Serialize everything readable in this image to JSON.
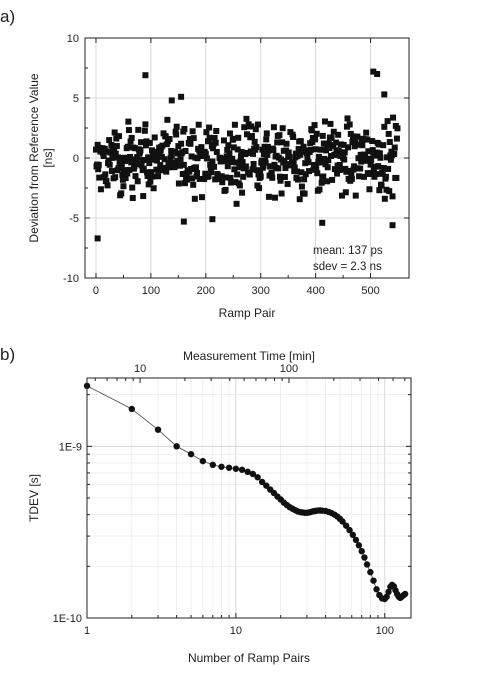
{
  "chart_data": [
    {
      "panel_label": "a)",
      "type": "scatter",
      "xlabel": "Ramp Pair",
      "ylabel_line1": "Deviation from Reference Value",
      "ylabel_line2": "[ns]",
      "xlim": [
        -20,
        570
      ],
      "ylim": [
        -10,
        10
      ],
      "x_ticks": [
        0,
        100,
        200,
        300,
        400,
        500
      ],
      "y_ticks": [
        -10,
        -5,
        0,
        5,
        10
      ],
      "grid": true,
      "annotation_line1": "mean: 137 ps",
      "annotation_line2": "sdev = 2.3 ns",
      "highlight_points": [
        [
          3,
          -6.7
        ],
        [
          90,
          6.9
        ],
        [
          138,
          4.8
        ],
        [
          155,
          5.1
        ],
        [
          160,
          -5.3
        ],
        [
          212,
          -5.1
        ],
        [
          412,
          -5.4
        ],
        [
          505,
          7.2
        ],
        [
          512,
          7.0
        ],
        [
          525,
          5.3
        ],
        [
          540,
          -5.6
        ]
      ],
      "point_count": 550,
      "spread": 2.3,
      "seed": 13
    },
    {
      "panel_label": "b)",
      "type": "line",
      "scale": "log-log",
      "xlabel": "Number of Ramp Pairs",
      "x2label": "Measurement Time [min]",
      "ylabel": "TDEV [s]",
      "xlim": [
        1,
        150
      ],
      "ylim": [
        1e-10,
        2.5e-09
      ],
      "x_ticks": [
        "1",
        "10",
        "100"
      ],
      "x2_ticks": [
        "10",
        "100"
      ],
      "x2_factor": 4.4,
      "y_ticks": [
        "1E-10",
        "1E-9"
      ],
      "grid": true,
      "points": [
        [
          1,
          2.25e-09
        ],
        [
          2,
          1.65e-09
        ],
        [
          3,
          1.25e-09
        ],
        [
          4,
          1e-09
        ],
        [
          5,
          9e-10
        ],
        [
          6,
          8.2e-10
        ],
        [
          7,
          7.8e-10
        ],
        [
          8,
          7.6e-10
        ],
        [
          9,
          7.5e-10
        ],
        [
          10,
          7.4e-10
        ],
        [
          11,
          7.3e-10
        ],
        [
          12,
          7.1e-10
        ],
        [
          13,
          6.9e-10
        ],
        [
          14,
          6.6e-10
        ],
        [
          15,
          6.2e-10
        ],
        [
          16,
          5.9e-10
        ],
        [
          17,
          5.6e-10
        ],
        [
          18,
          5.35e-10
        ],
        [
          19,
          5.1e-10
        ],
        [
          20,
          4.9e-10
        ],
        [
          21,
          4.7e-10
        ],
        [
          22,
          4.55e-10
        ],
        [
          23,
          4.42e-10
        ],
        [
          24,
          4.33e-10
        ],
        [
          25,
          4.25e-10
        ],
        [
          26,
          4.18e-10
        ],
        [
          27,
          4.14e-10
        ],
        [
          28,
          4.12e-10
        ],
        [
          29,
          4.1e-10
        ],
        [
          30,
          4.1e-10
        ],
        [
          31,
          4.12e-10
        ],
        [
          32,
          4.15e-10
        ],
        [
          33,
          4.18e-10
        ],
        [
          34,
          4.2e-10
        ],
        [
          35,
          4.22e-10
        ],
        [
          36,
          4.23e-10
        ],
        [
          37,
          4.23e-10
        ],
        [
          38,
          4.22e-10
        ],
        [
          40,
          4.2e-10
        ],
        [
          42,
          4.15e-10
        ],
        [
          44,
          4.08e-10
        ],
        [
          46,
          4e-10
        ],
        [
          48,
          3.9e-10
        ],
        [
          50,
          3.78e-10
        ],
        [
          52,
          3.65e-10
        ],
        [
          55,
          3.45e-10
        ],
        [
          58,
          3.25e-10
        ],
        [
          61,
          3.05e-10
        ],
        [
          64,
          2.85e-10
        ],
        [
          67,
          2.65e-10
        ],
        [
          70,
          2.45e-10
        ],
        [
          73,
          2.25e-10
        ],
        [
          76,
          2.05e-10
        ],
        [
          80,
          1.85e-10
        ],
        [
          84,
          1.65e-10
        ],
        [
          88,
          1.47e-10
        ],
        [
          92,
          1.36e-10
        ],
        [
          96,
          1.3e-10
        ],
        [
          100,
          1.29e-10
        ],
        [
          103,
          1.33e-10
        ],
        [
          106,
          1.42e-10
        ],
        [
          109,
          1.52e-10
        ],
        [
          112,
          1.56e-10
        ],
        [
          115,
          1.53e-10
        ],
        [
          118,
          1.45e-10
        ],
        [
          121,
          1.38e-10
        ],
        [
          124,
          1.33e-10
        ],
        [
          127,
          1.31e-10
        ],
        [
          130,
          1.33e-10
        ],
        [
          134,
          1.36e-10
        ],
        [
          137,
          1.38e-10
        ]
      ]
    }
  ]
}
